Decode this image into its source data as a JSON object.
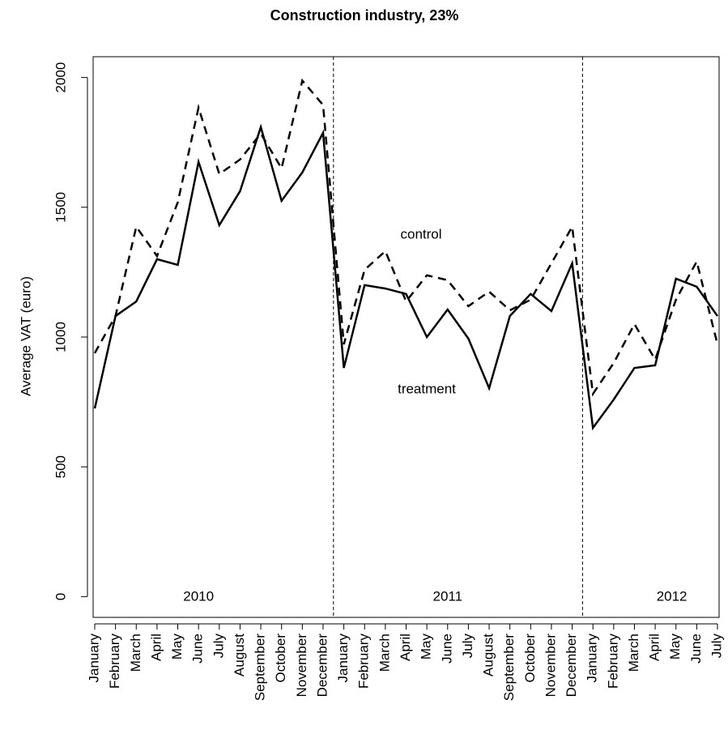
{
  "chart_data": {
    "type": "line",
    "title": "Construction industry, 23%",
    "y_label": "Average VAT (euro)",
    "categories": [
      "January",
      "February",
      "March",
      "April",
      "May",
      "June",
      "July",
      "August",
      "September",
      "October",
      "November",
      "December",
      "January",
      "February",
      "March",
      "April",
      "May",
      "June",
      "July",
      "August",
      "September",
      "October",
      "November",
      "December",
      "January",
      "February",
      "March",
      "April",
      "May",
      "June",
      "July"
    ],
    "year_labels": [
      "2010",
      "2011",
      "2012"
    ],
    "series": [
      {
        "name": "control",
        "color": "#000000",
        "dash": true,
        "values": [
          938,
          1081,
          1425,
          1312,
          1519,
          1884,
          1628,
          1684,
          1784,
          1650,
          1988,
          1894,
          972,
          1259,
          1331,
          1137,
          1238,
          1219,
          1119,
          1175,
          1103,
          1144,
          1284,
          1425,
          781,
          900,
          1050,
          913,
          1144,
          1291,
          972
        ]
      },
      {
        "name": "treatment",
        "color": "#000000",
        "dash": false,
        "values": [
          725,
          1081,
          1137,
          1300,
          1278,
          1675,
          1431,
          1562,
          1809,
          1525,
          1634,
          1787,
          881,
          1200,
          1187,
          1166,
          1000,
          1106,
          994,
          803,
          1081,
          1166,
          1100,
          1284,
          650,
          759,
          881,
          891,
          1225,
          1194,
          1081
        ]
      }
    ],
    "ylim": [
      -80,
      2080
    ],
    "yticks": [
      0,
      500,
      1000,
      1500,
      2000
    ]
  }
}
